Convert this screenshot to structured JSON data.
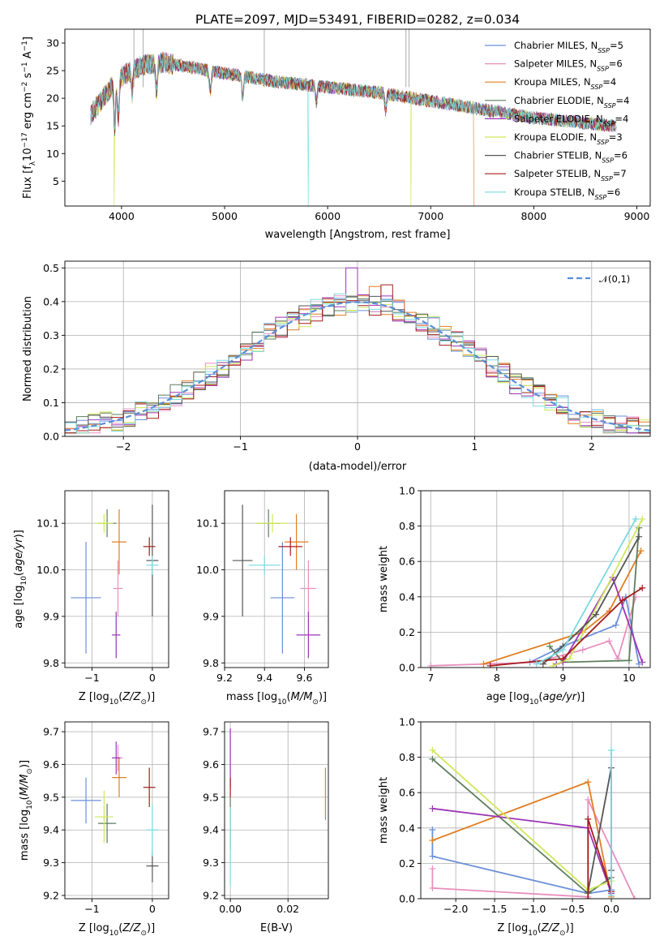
{
  "title": "PLATE=2097, MJD=53491, FIBERID=0282, z=0.034",
  "colors": {
    "Chabrier MILES": "#6b8fd9",
    "Salpeter MILES": "#e88fbf",
    "Kroupa MILES": "#e07f24",
    "Chabrier ELODIE": "#5d7e5d",
    "Salpeter ELODIE": "#9b35b5",
    "Kroupa ELODIE": "#cfe85a",
    "Chabrier STELIB": "#555555",
    "Salpeter STELIB": "#a51d1d",
    "Kroupa STELIB": "#7ad9e0"
  },
  "legend": {
    "entries": [
      {
        "name": "Chabrier MILES",
        "n": "5"
      },
      {
        "name": "Salpeter MILES",
        "n": "6"
      },
      {
        "name": "Kroupa MILES",
        "n": "4"
      },
      {
        "name": "Chabrier ELODIE",
        "n": "4"
      },
      {
        "name": "Salpeter ELODIE",
        "n": "4"
      },
      {
        "name": "Kroupa ELODIE",
        "n": "3"
      },
      {
        "name": "Chabrier STELIB",
        "n": "6"
      },
      {
        "name": "Salpeter STELIB",
        "n": "7"
      },
      {
        "name": "Kroupa STELIB",
        "n": "6"
      }
    ],
    "nssp_label": "N",
    "nssp_sub": "SSP",
    "placement": "upper-right"
  },
  "chart_data": [
    {
      "id": "spectrum",
      "type": "line",
      "xlabel": "wavelength [Angstrom, rest frame]",
      "ylabel": "Flux [f_λ 10^-17 erg cm^-2 s^-1 A^-1]",
      "xlim": [
        3450,
        9130
      ],
      "ylim": [
        0.5,
        32.5
      ],
      "xticks": [
        4000,
        5000,
        6000,
        7000,
        8000,
        9000
      ],
      "yticks": [
        5,
        10,
        15,
        20,
        25,
        30
      ],
      "grid": false,
      "anchors": [
        [
          3700,
          17
        ],
        [
          3800,
          19.5
        ],
        [
          3900,
          22
        ],
        [
          4000,
          24
        ],
        [
          4200,
          26
        ],
        [
          4400,
          26.5
        ],
        [
          4700,
          25.5
        ],
        [
          5000,
          24.5
        ],
        [
          5500,
          23
        ],
        [
          6000,
          22
        ],
        [
          6500,
          21
        ],
        [
          7000,
          19.5
        ],
        [
          7500,
          18
        ],
        [
          8000,
          16.5
        ],
        [
          8500,
          15.5
        ],
        [
          8800,
          15
        ]
      ],
      "absorption": [
        [
          3934,
          8
        ],
        [
          3969,
          7
        ],
        [
          4102,
          4
        ],
        [
          4340,
          5
        ],
        [
          4861,
          4
        ],
        [
          5175,
          4
        ],
        [
          5890,
          3
        ],
        [
          6563,
          3
        ]
      ],
      "cutoffs": [
        [
          3930,
          "Kroupa ELODIE"
        ],
        [
          5810,
          "Kroupa STELIB"
        ],
        [
          6810,
          "Kroupa ELODIE"
        ],
        [
          7420,
          "Kroupa MILES"
        ]
      ]
    },
    {
      "id": "residuals",
      "type": "histogram",
      "xlabel": "(data-model)/error",
      "ylabel": "Normed distribution",
      "xlim": [
        -2.5,
        2.5
      ],
      "ylim": [
        0,
        0.52
      ],
      "xticks": [
        -2,
        -1,
        0,
        1,
        2
      ],
      "yticks": [
        0.0,
        0.1,
        0.2,
        0.3,
        0.4,
        0.5
      ],
      "grid": true,
      "bin_width": 0.1,
      "reference_label": "𝒩(0,1)",
      "reference": "standard normal pdf, dashed",
      "spikes": [
        [
          -0.05,
          0.5,
          "Salpeter ELODIE"
        ],
        [
          0.25,
          0.45,
          "Salpeter STELIB"
        ],
        [
          0.15,
          0.445,
          "Kroupa MILES"
        ]
      ]
    },
    {
      "id": "age_vs_Z",
      "type": "errorbar",
      "xlabel": "Z [log10(Z/Z⊙)]",
      "ylabel": "age  [log10(age/yr)]",
      "xlim": [
        -1.45,
        0.27
      ],
      "ylim": [
        9.79,
        10.17
      ],
      "xticks": [
        -1,
        0
      ],
      "yticks": [
        9.8,
        9.9,
        10.0,
        10.1
      ],
      "grid": true,
      "points": [
        {
          "series": "Chabrier MILES",
          "x": -1.1,
          "y": 9.94,
          "xerr": 0.25,
          "yerr": 0.12
        },
        {
          "series": "Salpeter MILES",
          "x": -0.57,
          "y": 9.96,
          "xerr": 0.08,
          "yerr": 0.06
        },
        {
          "series": "Kroupa MILES",
          "x": -0.55,
          "y": 10.06,
          "xerr": 0.12,
          "yerr": 0.07
        },
        {
          "series": "Chabrier ELODIE",
          "x": -0.75,
          "y": 10.1,
          "xerr": 0.15,
          "yerr": 0.03
        },
        {
          "series": "Salpeter ELODIE",
          "x": -0.6,
          "y": 9.86,
          "xerr": 0.07,
          "yerr": 0.05
        },
        {
          "series": "Kroupa ELODIE",
          "x": -0.8,
          "y": 10.1,
          "xerr": 0.15,
          "yerr": 0.02
        },
        {
          "series": "Chabrier STELIB",
          "x": 0.0,
          "y": 10.02,
          "xerr": 0.1,
          "yerr": 0.12
        },
        {
          "series": "Salpeter STELIB",
          "x": -0.05,
          "y": 10.05,
          "xerr": 0.1,
          "yerr": 0.02
        },
        {
          "series": "Kroupa STELIB",
          "x": 0.0,
          "y": 10.01,
          "xerr": 0.1,
          "yerr": 0.02
        }
      ]
    },
    {
      "id": "age_vs_mass",
      "type": "errorbar",
      "xlabel": "mass [log10(M/M⊙)]",
      "ylabel": "",
      "xlim": [
        9.2,
        9.72
      ],
      "ylim": [
        9.79,
        10.17
      ],
      "xticks": [
        9.2,
        9.4,
        9.6
      ],
      "yticks": [
        9.8,
        9.9,
        10.0,
        10.1
      ],
      "grid": true,
      "points": [
        {
          "series": "Chabrier MILES",
          "x": 9.49,
          "y": 9.94,
          "xerr": 0.06,
          "yerr": 0.12
        },
        {
          "series": "Salpeter MILES",
          "x": 9.62,
          "y": 9.96,
          "xerr": 0.04,
          "yerr": 0.06
        },
        {
          "series": "Kroupa MILES",
          "x": 9.56,
          "y": 10.06,
          "xerr": 0.06,
          "yerr": 0.06
        },
        {
          "series": "Chabrier ELODIE",
          "x": 9.42,
          "y": 10.1,
          "xerr": 0.06,
          "yerr": 0.03
        },
        {
          "series": "Salpeter ELODIE",
          "x": 9.62,
          "y": 9.86,
          "xerr": 0.06,
          "yerr": 0.05
        },
        {
          "series": "Kroupa ELODIE",
          "x": 9.44,
          "y": 10.1,
          "xerr": 0.08,
          "yerr": 0.02
        },
        {
          "series": "Chabrier STELIB",
          "x": 9.29,
          "y": 10.02,
          "xerr": 0.05,
          "yerr": 0.12
        },
        {
          "series": "Salpeter STELIB",
          "x": 9.53,
          "y": 10.05,
          "xerr": 0.06,
          "yerr": 0.02
        },
        {
          "series": "Kroupa STELIB",
          "x": 9.4,
          "y": 10.01,
          "xerr": 0.08,
          "yerr": 0.02
        }
      ]
    },
    {
      "id": "weight_vs_age",
      "type": "line",
      "xlabel": "age  [log10(age/yr)]",
      "ylabel": "mass weight",
      "xlim": [
        6.85,
        10.32
      ],
      "ylim": [
        0,
        1.0
      ],
      "xticks": [
        7,
        8,
        9,
        10
      ],
      "yticks": [
        0.0,
        0.2,
        0.4,
        0.6,
        0.8,
        1.0
      ],
      "grid": true,
      "series": [
        {
          "name": "Chabrier MILES",
          "points": [
            [
              8.5,
              0.03
            ],
            [
              9.0,
              0.12
            ],
            [
              9.8,
              0.24
            ],
            [
              9.95,
              0.4
            ],
            [
              10.15,
              0.02
            ]
          ]
        },
        {
          "name": "Salpeter MILES",
          "points": [
            [
              7.0,
              0.01
            ],
            [
              8.6,
              0.03
            ],
            [
              9.3,
              0.1
            ],
            [
              9.7,
              0.15
            ],
            [
              9.83,
              0.05
            ],
            [
              10.1,
              0.4
            ]
          ]
        },
        {
          "name": "Kroupa MILES",
          "points": [
            [
              7.8,
              0.02
            ],
            [
              9.3,
              0.2
            ],
            [
              9.7,
              0.32
            ],
            [
              10.18,
              0.66
            ]
          ]
        },
        {
          "name": "Chabrier ELODIE",
          "points": [
            [
              8.8,
              0.12
            ],
            [
              9.0,
              0.03
            ],
            [
              10.0,
              0.04
            ],
            [
              10.15,
              0.79
            ]
          ]
        },
        {
          "name": "Salpeter ELODIE",
          "points": [
            [
              8.9,
              0.02
            ],
            [
              9.0,
              0.03
            ],
            [
              9.75,
              0.51
            ],
            [
              10.2,
              0.03
            ]
          ]
        },
        {
          "name": "Kroupa ELODIE",
          "points": [
            [
              8.85,
              0.01
            ],
            [
              9.1,
              0.05
            ],
            [
              10.2,
              0.84
            ]
          ]
        },
        {
          "name": "Chabrier STELIB",
          "points": [
            [
              8.7,
              0.02
            ],
            [
              9.0,
              0.12
            ],
            [
              9.5,
              0.3
            ],
            [
              10.15,
              0.74
            ]
          ]
        },
        {
          "name": "Salpeter STELIB",
          "points": [
            [
              7.9,
              0.01
            ],
            [
              9.0,
              0.05
            ],
            [
              9.9,
              0.38
            ],
            [
              10.2,
              0.45
            ]
          ]
        },
        {
          "name": "Kroupa STELIB",
          "points": [
            [
              8.6,
              0.02
            ],
            [
              9.0,
              0.1
            ],
            [
              10.1,
              0.84
            ]
          ]
        }
      ]
    },
    {
      "id": "mass_vs_Z",
      "type": "errorbar",
      "xlabel": "Z [log10(Z/Z⊙)]",
      "ylabel": "mass [log10(M/M⊙)]",
      "xlim": [
        -1.45,
        0.27
      ],
      "ylim": [
        9.19,
        9.73
      ],
      "xticks": [
        -1,
        0
      ],
      "yticks": [
        9.2,
        9.3,
        9.4,
        9.5,
        9.6,
        9.7
      ],
      "grid": true,
      "points": [
        {
          "series": "Chabrier MILES",
          "x": -1.1,
          "y": 9.49,
          "xerr": 0.25,
          "yerr": 0.07
        },
        {
          "series": "Salpeter MILES",
          "x": -0.57,
          "y": 9.62,
          "xerr": 0.08,
          "yerr": 0.04
        },
        {
          "series": "Kroupa MILES",
          "x": -0.55,
          "y": 9.56,
          "xerr": 0.12,
          "yerr": 0.06
        },
        {
          "series": "Chabrier ELODIE",
          "x": -0.75,
          "y": 9.42,
          "xerr": 0.15,
          "yerr": 0.06
        },
        {
          "series": "Salpeter ELODIE",
          "x": -0.6,
          "y": 9.62,
          "xerr": 0.07,
          "yerr": 0.05
        },
        {
          "series": "Kroupa ELODIE",
          "x": -0.8,
          "y": 9.44,
          "xerr": 0.15,
          "yerr": 0.08
        },
        {
          "series": "Chabrier STELIB",
          "x": 0.0,
          "y": 9.29,
          "xerr": 0.1,
          "yerr": 0.05
        },
        {
          "series": "Salpeter STELIB",
          "x": -0.05,
          "y": 9.53,
          "xerr": 0.1,
          "yerr": 0.06
        },
        {
          "series": "Kroupa STELIB",
          "x": 0.0,
          "y": 9.4,
          "xerr": 0.1,
          "yerr": 0.08
        }
      ]
    },
    {
      "id": "mass_vs_ebv",
      "type": "errorbar",
      "xlabel": "E(B-V)",
      "ylabel": "",
      "xlim": [
        -0.002,
        0.034
      ],
      "ylim": [
        9.19,
        9.73
      ],
      "xticks": [
        0.0,
        0.02
      ],
      "xticklabels": [
        "0.00",
        "0.02"
      ],
      "yticks": [
        9.2,
        9.3,
        9.4,
        9.5,
        9.6,
        9.7
      ],
      "grid": true,
      "points": [
        {
          "series": "Salpeter ELODIE",
          "x": 0.0,
          "y": 9.62,
          "xerr": 0,
          "yerr": 0.09
        },
        {
          "series": "Salpeter STELIB",
          "x": 0.0,
          "y": 9.53,
          "xerr": 0,
          "yerr": 0.03
        },
        {
          "series": "Chabrier ELODIE",
          "x": 0.0,
          "y": 9.42,
          "xerr": 0,
          "yerr": 0.08
        },
        {
          "series": "Kroupa STELIB",
          "x": 0.0,
          "y": 9.35,
          "xerr": 0,
          "yerr": 0.12
        },
        {
          "series": "Kroupa MILES",
          "x": 0.033,
          "y": 9.51,
          "xerr": 0,
          "yerr": 0.08
        }
      ]
    },
    {
      "id": "weight_vs_Z",
      "type": "line",
      "xlabel": "Z [log10(Z/Z⊙)]",
      "ylabel": "mass weight",
      "xlim": [
        -2.45,
        0.5
      ],
      "ylim": [
        0,
        1.0
      ],
      "xticks": [
        -2.0,
        -1.5,
        -1.0,
        -0.5,
        0.0
      ],
      "xticklabels": [
        "−2.0",
        "−1.5",
        "−1.0",
        "−0.5",
        "0.0"
      ],
      "yticks": [
        0.0,
        0.2,
        0.4,
        0.6,
        0.8,
        1.0
      ],
      "grid": true,
      "series": [
        {
          "name": "Chabrier MILES",
          "points": [
            [
              -2.3,
              0.39
            ],
            [
              -2.3,
              0.24
            ],
            [
              -0.3,
              0.03
            ],
            [
              0.0,
              0.05
            ]
          ]
        },
        {
          "name": "Salpeter MILES",
          "points": [
            [
              -2.3,
              0.17
            ],
            [
              -2.3,
              0.06
            ],
            [
              -0.3,
              0.01
            ],
            [
              -0.3,
              0.56
            ],
            [
              0.3,
              0.0
            ]
          ]
        },
        {
          "name": "Kroupa MILES",
          "points": [
            [
              -2.3,
              0.33
            ],
            [
              -0.3,
              0.66
            ],
            [
              0.0,
              0.01
            ]
          ]
        },
        {
          "name": "Chabrier ELODIE",
          "points": [
            [
              -2.3,
              0.79
            ],
            [
              -0.3,
              0.03
            ],
            [
              0.0,
              0.12
            ]
          ]
        },
        {
          "name": "Salpeter ELODIE",
          "points": [
            [
              -2.3,
              0.51
            ],
            [
              -0.3,
              0.4
            ],
            [
              0.0,
              0.03
            ]
          ]
        },
        {
          "name": "Kroupa ELODIE",
          "points": [
            [
              -2.3,
              0.84
            ],
            [
              -0.3,
              0.05
            ],
            [
              0.0,
              0.1
            ]
          ]
        },
        {
          "name": "Chabrier STELIB",
          "points": [
            [
              -0.3,
              0.04
            ],
            [
              0.0,
              0.74
            ],
            [
              0.0,
              0.16
            ]
          ]
        },
        {
          "name": "Salpeter STELIB",
          "points": [
            [
              -0.3,
              0.0
            ],
            [
              -0.3,
              0.45
            ],
            [
              0.0,
              0.04
            ]
          ]
        },
        {
          "name": "Kroupa STELIB",
          "points": [
            [
              0.0,
              0.84
            ],
            [
              0.0,
              0.02
            ]
          ]
        }
      ]
    }
  ]
}
